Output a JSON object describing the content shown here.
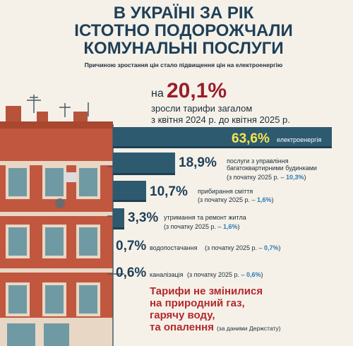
{
  "header": {
    "title_line1": "В УКРАЇНІ ЗА РІК",
    "title_line2": "ІСТОТНО ПОДОРОЖЧАЛИ",
    "title_line3": "КОМУНАЛЬНІ ПОСЛУГИ",
    "subtitle": "Причиною зростання цін стало підвищення цін на електроенергію"
  },
  "headline": {
    "prefix": "на",
    "value": "20,1%",
    "line1": "зросли тарифи загалом",
    "line2": "з квітня 2024 р. до квітня 2025 р."
  },
  "chart_data": {
    "type": "bar",
    "categories": [
      "електроенергія",
      "послуги з управління багатоквартирними будинками",
      "прибирання сміття",
      "утримання та ремонт житла",
      "водопостачання",
      "каналізація"
    ],
    "values": [
      63.6,
      18.9,
      10.7,
      3.3,
      0.7,
      0.6
    ],
    "labels": [
      "63,6%",
      "18,9%",
      "10,7%",
      "3,3%",
      "0,7%",
      "0,6%"
    ],
    "since_start_2025": [
      "",
      "10,3%",
      "1,6%",
      "1,6%",
      "0,7%",
      "0,6%"
    ],
    "bar_color": "#2e5a70",
    "bar_shadow_color": "#1e4052",
    "highlight_color": "#f6e84a"
  },
  "bars": [
    {
      "pct": "63,6%",
      "line1": "електроенергія",
      "line2": "",
      "note": ""
    },
    {
      "pct": "18,9%",
      "line1": "послуги з управління",
      "line2": "багатоквартирними будинками",
      "note_prefix": "(з початку 2025 р. – ",
      "note_value": "10,3%",
      "note_suffix": ")"
    },
    {
      "pct": "10,7%",
      "line1": "прибирання сміття",
      "note_prefix": "(з початку 2025 р. – ",
      "note_value": "1,6%",
      "note_suffix": ")"
    },
    {
      "pct": "3,3%",
      "line1": "утримання та ремонт житла",
      "note_prefix": "(з початку 2025 р. – ",
      "note_value": "1,6%",
      "note_suffix": ")"
    },
    {
      "pct": "0,7%",
      "line1": "водопостачання",
      "note_prefix": "(з початку 2025 р. – ",
      "note_value": "0,7%",
      "note_suffix": ")"
    },
    {
      "pct": "0,6%",
      "line1": "каналізація",
      "note_prefix": "(з початку 2025 р. – ",
      "note_value": "0,6%",
      "note_suffix": ")"
    }
  ],
  "bottom": {
    "line1": "Тарифи не змінилися",
    "line2": "на природний газ,",
    "line3": "гарячу воду,",
    "line4": "та опалення",
    "source": "(за даними Держстату)"
  },
  "colors": {
    "title": "#1f3f58",
    "accent_red": "#9a1d2c",
    "brick": "#c2573f",
    "sky_background": "#f5f1e8"
  }
}
